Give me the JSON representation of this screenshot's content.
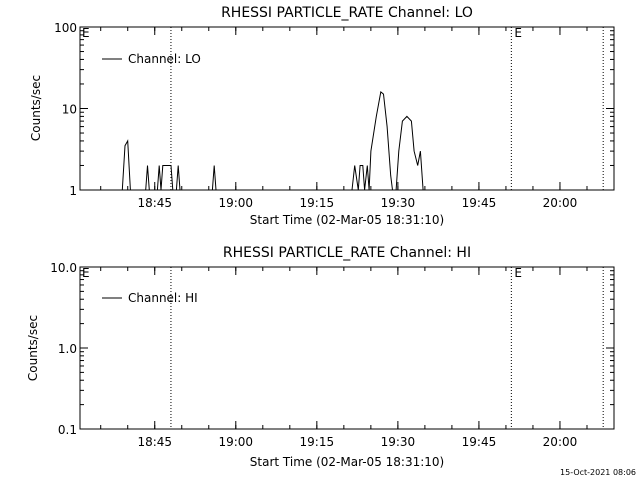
{
  "footer": {
    "timestamp": "15-Oct-2021 08:06"
  },
  "colors": {
    "foreground": "#000000",
    "background": "#ffffff"
  },
  "chart_data": [
    {
      "type": "line",
      "title": "RHESSI PARTICLE_RATE Channel: LO",
      "xlabel": "Start Time (02-Mar-05 18:31:10)",
      "ylabel": "Counts/sec",
      "yscale": "log",
      "ylim": [
        1,
        100
      ],
      "xlim": [
        "18:31:10",
        "20:10:00"
      ],
      "xticks": [
        "18:45",
        "19:00",
        "19:15",
        "19:30",
        "19:45",
        "20:00"
      ],
      "yticks": [
        "1",
        "10",
        "100"
      ],
      "legend": {
        "position": "top-left",
        "entries": [
          "Channel: LO"
        ]
      },
      "markers": [
        {
          "time": "18:48:00",
          "label": ""
        },
        {
          "time": "19:51:00",
          "label": "E"
        },
        {
          "time": "20:08:00",
          "label": ""
        }
      ],
      "corner_label": "E",
      "series": [
        {
          "name": "Channel: LO",
          "points": [
            [
              "18:39:00",
              1
            ],
            [
              "18:39:30",
              3.5
            ],
            [
              "18:40:00",
              4
            ],
            [
              "18:40:30",
              1
            ],
            [
              "18:43:20",
              1
            ],
            [
              "18:43:40",
              2
            ],
            [
              "18:44:00",
              1
            ],
            [
              "18:45:30",
              1
            ],
            [
              "18:45:50",
              2
            ],
            [
              "18:46:10",
              1
            ],
            [
              "18:46:30",
              2
            ],
            [
              "18:48:00",
              2
            ],
            [
              "18:48:20",
              1
            ],
            [
              "18:49:00",
              1
            ],
            [
              "18:49:20",
              2
            ],
            [
              "18:49:40",
              1
            ],
            [
              "18:55:40",
              1
            ],
            [
              "18:56:00",
              2
            ],
            [
              "18:56:20",
              1
            ],
            [
              "19:21:30",
              1
            ],
            [
              "19:22:00",
              2
            ],
            [
              "19:22:40",
              1
            ],
            [
              "19:23:00",
              2
            ],
            [
              "19:23:30",
              2
            ],
            [
              "19:23:50",
              1
            ],
            [
              "19:24:20",
              2
            ],
            [
              "19:24:40",
              1
            ],
            [
              "19:25:00",
              3
            ],
            [
              "19:26:00",
              8
            ],
            [
              "19:26:50",
              16
            ],
            [
              "19:27:20",
              15
            ],
            [
              "19:28:00",
              6
            ],
            [
              "19:28:40",
              1.5
            ],
            [
              "19:29:00",
              1
            ],
            [
              "19:29:40",
              1
            ],
            [
              "19:30:10",
              3
            ],
            [
              "19:30:50",
              7
            ],
            [
              "19:31:40",
              8
            ],
            [
              "19:32:30",
              7
            ],
            [
              "19:33:00",
              3
            ],
            [
              "19:33:40",
              2
            ],
            [
              "19:34:10",
              3
            ],
            [
              "19:34:40",
              1
            ]
          ]
        }
      ]
    },
    {
      "type": "line",
      "title": "RHESSI PARTICLE_RATE Channel: HI",
      "xlabel": "Start Time (02-Mar-05 18:31:10)",
      "ylabel": "Counts/sec",
      "yscale": "log",
      "ylim": [
        0.1,
        10
      ],
      "xlim": [
        "18:31:10",
        "20:10:00"
      ],
      "xticks": [
        "18:45",
        "19:00",
        "19:15",
        "19:30",
        "19:45",
        "20:00"
      ],
      "yticks": [
        "0.1",
        "1.0",
        "10.0"
      ],
      "legend": {
        "position": "top-left",
        "entries": [
          "Channel: HI"
        ]
      },
      "markers": [
        {
          "time": "18:48:00",
          "label": ""
        },
        {
          "time": "19:51:00",
          "label": "E"
        },
        {
          "time": "20:08:00",
          "label": ""
        }
      ],
      "corner_label": "E",
      "series": [
        {
          "name": "Channel: HI",
          "points": []
        }
      ]
    }
  ]
}
